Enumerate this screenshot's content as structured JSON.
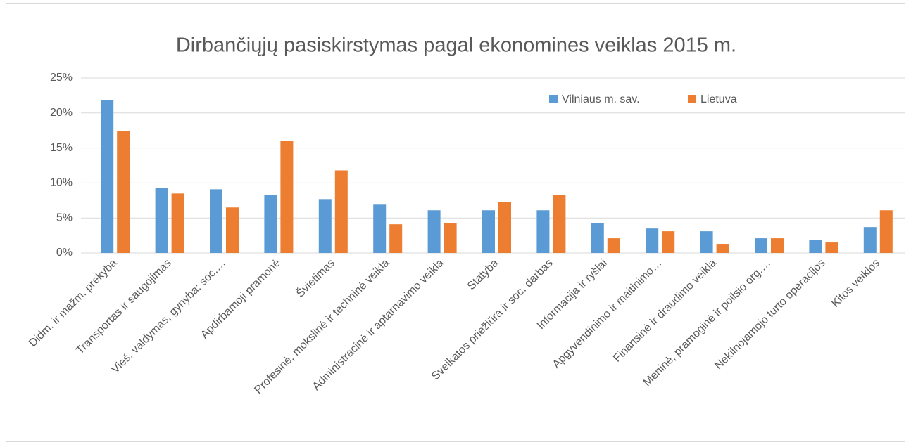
{
  "chart_data": {
    "type": "bar",
    "title": "Dirbančiųjų pasiskirstymas pagal ekonomines veiklas 2015 m.",
    "categories": [
      "Didm. ir mažm. prekyba",
      "Transportas ir saugojimas",
      "Vieš. valdymas, gynyba; soc.…",
      "Apdirbamoji pramonė",
      "Švietimas",
      "Profesinė, mokslinė ir techninė veikla",
      "Administracinė ir aptarnavimo veikla",
      "Statyba",
      "Sveikatos priežiūra ir soc. darbas",
      "Informacija ir ryšiai",
      "Apgyvendinimo ir maitinimo…",
      "Finansinė ir draudimo veikla",
      "Meninė, pramoginė ir poilsio org.…",
      "Nekilnojamojo turto operacijos",
      "Kitos veiklos"
    ],
    "series": [
      {
        "name": "Vilniaus m. sav.",
        "color": "#5b9bd5",
        "values": [
          21.8,
          9.3,
          9.1,
          8.3,
          7.7,
          6.9,
          6.1,
          6.1,
          6.1,
          4.3,
          3.5,
          3.1,
          2.1,
          1.9,
          3.7
        ]
      },
      {
        "name": "Lietuva",
        "color": "#ed7d31",
        "values": [
          17.4,
          8.5,
          6.5,
          16.0,
          11.8,
          4.1,
          4.3,
          7.3,
          8.3,
          2.1,
          3.1,
          1.3,
          2.1,
          1.5,
          6.1
        ]
      }
    ],
    "ylim": [
      0,
      25
    ],
    "yticks": [
      {
        "value": 0,
        "label": "0%"
      },
      {
        "value": 5,
        "label": "5%"
      },
      {
        "value": 10,
        "label": "10%"
      },
      {
        "value": 15,
        "label": "15%"
      },
      {
        "value": 20,
        "label": "20%"
      },
      {
        "value": 25,
        "label": "25%"
      }
    ],
    "grid": true
  }
}
